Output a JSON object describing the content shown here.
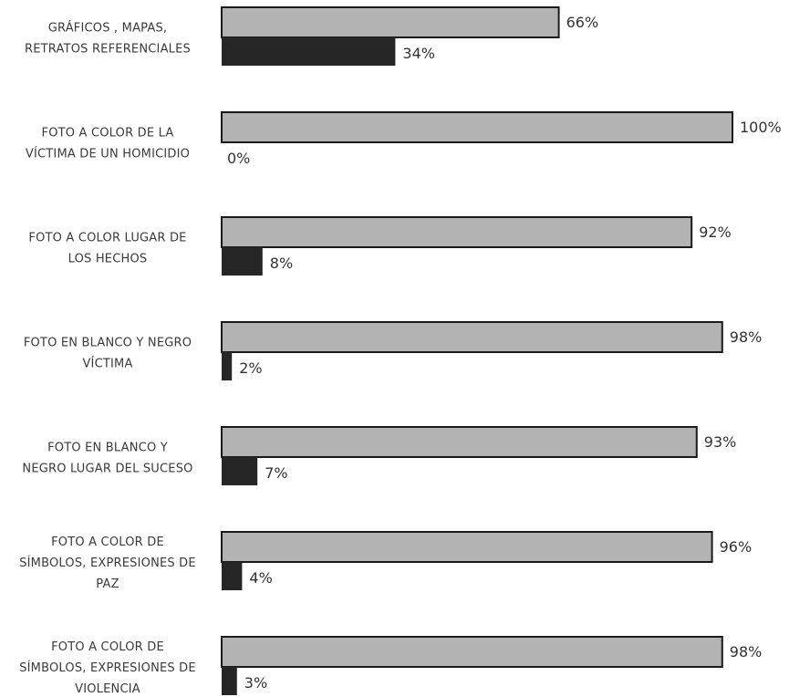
{
  "chart_data": {
    "type": "bar",
    "orientation": "horizontal",
    "categories": [
      [
        "GRÁFICOS , MAPAS,",
        "RETRATOS REFERENCIALES"
      ],
      [
        "FOTO A COLOR DE LA",
        "VÍCTIMA DE UN HOMICIDIO"
      ],
      [
        "FOTO A COLOR LUGAR DE",
        "LOS HECHOS"
      ],
      [
        "FOTO EN BLANCO Y NEGRO",
        "VÍCTIMA"
      ],
      [
        "FOTO  EN BLANCO Y",
        "NEGRO LUGAR DEL SUCESO"
      ],
      [
        "FOTO A COLOR DE",
        "SÍMBOLOS, EXPRESIONES DE",
        "PAZ"
      ],
      [
        "FOTO  A COLOR DE",
        "SÍMBOLOS, EXPRESIONES DE",
        "VIOLENCIA"
      ]
    ],
    "series": [
      {
        "values": [
          66,
          100,
          92,
          98,
          93,
          96,
          98
        ],
        "labels": [
          "66%",
          "100%",
          "92%",
          "98%",
          "93%",
          "96%",
          "98%"
        ],
        "color": "#b3b3b3"
      },
      {
        "values": [
          34,
          0,
          8,
          2,
          7,
          4,
          3
        ],
        "labels": [
          "34%",
          "0%",
          "8%",
          "2%",
          "7%",
          "4%",
          "3%"
        ],
        "color": "#262626"
      }
    ],
    "xlim": [
      0,
      100
    ],
    "grid": false,
    "legend": "none",
    "title": "",
    "xlabel": "",
    "ylabel": ""
  }
}
